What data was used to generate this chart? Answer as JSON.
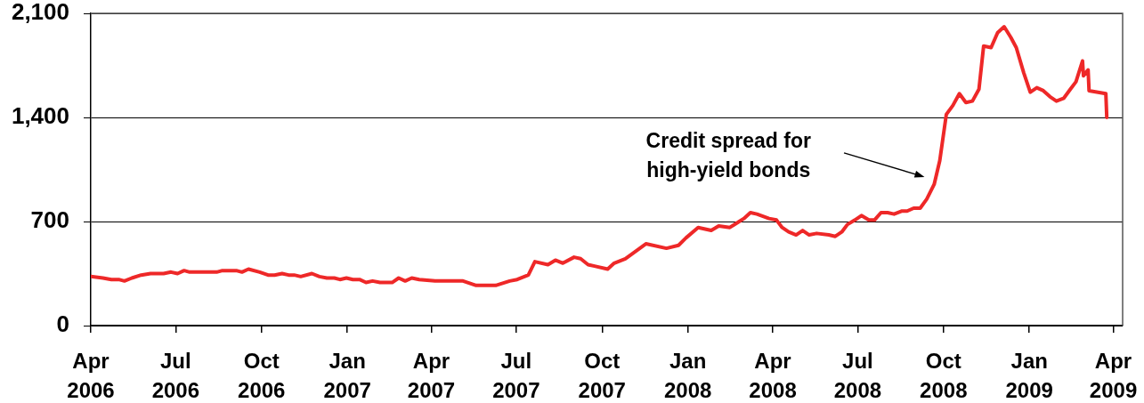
{
  "chart_data": {
    "type": "line",
    "color": "#ee2828",
    "line_style": "solid",
    "grid": "y",
    "xlim": [
      "2006-04-01",
      "2009-04-11"
    ],
    "ylim": [
      0,
      2100
    ],
    "xticks": [
      {
        "value": "2006-04-01",
        "label": "Apr 2006"
      },
      {
        "value": "2006-07-01",
        "label": "Jul 2006"
      },
      {
        "value": "2006-10-01",
        "label": "Oct 2006"
      },
      {
        "value": "2007-01-01",
        "label": "Jan 2007"
      },
      {
        "value": "2007-04-01",
        "label": "Apr 2007"
      },
      {
        "value": "2007-07-01",
        "label": "Jul 2007"
      },
      {
        "value": "2007-10-01",
        "label": "Oct 2007"
      },
      {
        "value": "2008-01-01",
        "label": "Jan 2008"
      },
      {
        "value": "2008-04-01",
        "label": "Apr 2008"
      },
      {
        "value": "2008-07-01",
        "label": "Jul 2008"
      },
      {
        "value": "2008-10-01",
        "label": "Oct 2008"
      },
      {
        "value": "2009-01-01",
        "label": "Jan 2009"
      },
      {
        "value": "2009-04-01",
        "label": "Apr 2009"
      }
    ],
    "yticks": [
      0,
      700,
      {
        "value": 1400,
        "label": "1,400"
      },
      {
        "value": 2100,
        "label": "2,100"
      }
    ],
    "annotations": [
      "Credit spread for high-yield bonds"
    ],
    "x": [
      "2006-04-01",
      "2006-04-14",
      "2006-04-23",
      "2006-05-01",
      "2006-05-07",
      "2006-05-15",
      "2006-05-25",
      "2006-06-04",
      "2006-06-18",
      "2006-06-26",
      "2006-07-03",
      "2006-07-10",
      "2006-07-16",
      "2006-08-14",
      "2006-08-20",
      "2006-09-04",
      "2006-09-10",
      "2006-09-17",
      "2006-09-29",
      "2006-10-08",
      "2006-10-15",
      "2006-10-23",
      "2006-10-30",
      "2006-11-05",
      "2006-11-12",
      "2006-11-24",
      "2006-12-02",
      "2006-12-10",
      "2006-12-18",
      "2006-12-24",
      "2006-12-31",
      "2007-01-07",
      "2007-01-14",
      "2007-01-21",
      "2007-01-28",
      "2007-02-05",
      "2007-02-18",
      "2007-02-25",
      "2007-03-04",
      "2007-03-11",
      "2007-03-19",
      "2007-04-05",
      "2007-05-05",
      "2007-05-19",
      "2007-06-09",
      "2007-06-24",
      "2007-07-02",
      "2007-07-14",
      "2007-07-21",
      "2007-08-04",
      "2007-08-12",
      "2007-08-20",
      "2007-09-01",
      "2007-09-08",
      "2007-09-16",
      "2007-09-23",
      "2007-10-07",
      "2007-10-14",
      "2007-10-26",
      "2007-11-17",
      "2007-12-09",
      "2007-12-22",
      "2007-12-30",
      "2008-01-12",
      "2008-01-26",
      "2008-02-03",
      "2008-02-15",
      "2008-02-25",
      "2008-03-01",
      "2008-03-08",
      "2008-03-15",
      "2008-03-28",
      "2008-04-05",
      "2008-04-11",
      "2008-04-18",
      "2008-04-26",
      "2008-05-03",
      "2008-05-10",
      "2008-05-18",
      "2008-05-31",
      "2008-06-07",
      "2008-06-14",
      "2008-06-20",
      "2008-06-28",
      "2008-07-05",
      "2008-07-13",
      "2008-07-19",
      "2008-07-26",
      "2008-08-02",
      "2008-08-09",
      "2008-08-17",
      "2008-08-23",
      "2008-08-30",
      "2008-09-06",
      "2008-09-13",
      "2008-09-21",
      "2008-09-27",
      "2008-10-04",
      "2008-10-11",
      "2008-10-18",
      "2008-10-25",
      "2008-11-01",
      "2008-11-08",
      "2008-11-13",
      "2008-11-21",
      "2008-11-28",
      "2008-12-05",
      "2008-12-12",
      "2008-12-18",
      "2008-12-26",
      "2009-01-02",
      "2009-01-09",
      "2009-01-16",
      "2009-01-23",
      "2009-01-30",
      "2009-02-07",
      "2009-02-14",
      "2009-02-20",
      "2009-02-27",
      "2009-02-28",
      "2009-03-05",
      "2009-03-06",
      "2009-03-24",
      "2009-03-25"
    ],
    "values": [
      330,
      320,
      310,
      310,
      300,
      320,
      340,
      350,
      350,
      360,
      350,
      370,
      360,
      360,
      370,
      370,
      360,
      380,
      360,
      340,
      340,
      350,
      340,
      340,
      330,
      350,
      330,
      320,
      320,
      310,
      320,
      310,
      310,
      290,
      300,
      290,
      290,
      320,
      300,
      320,
      310,
      300,
      300,
      270,
      270,
      300,
      310,
      340,
      430,
      410,
      440,
      420,
      460,
      450,
      410,
      400,
      380,
      420,
      450,
      550,
      520,
      540,
      590,
      660,
      640,
      670,
      660,
      700,
      720,
      760,
      750,
      720,
      710,
      660,
      630,
      610,
      640,
      610,
      620,
      610,
      600,
      630,
      680,
      710,
      740,
      710,
      710,
      760,
      760,
      750,
      770,
      770,
      790,
      790,
      850,
      950,
      1110,
      1420,
      1480,
      1560,
      1500,
      1510,
      1590,
      1880,
      1870,
      1970,
      2010,
      1940,
      1870,
      1700,
      1570,
      1600,
      1580,
      1540,
      1510,
      1530,
      1590,
      1640,
      1780,
      1680,
      1720,
      1580,
      1560,
      1400
    ]
  }
}
